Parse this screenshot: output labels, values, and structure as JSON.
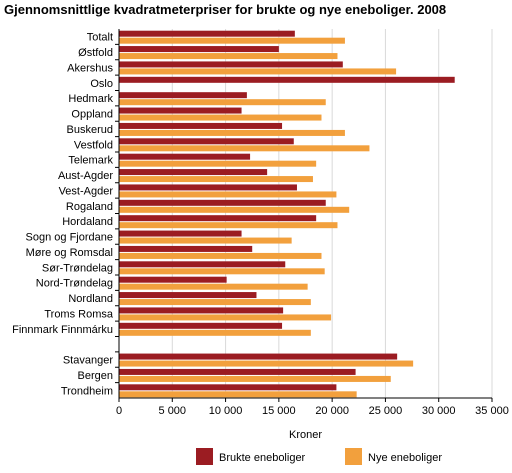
{
  "chart_data": {
    "type": "bar",
    "orientation": "horizontal",
    "title": "Gjennomsnittlige kvadratmeterpriser for brukte og nye eneboliger. 2008",
    "xlabel": "Kroner",
    "ylabel": "",
    "xlim": [
      0,
      35000
    ],
    "xticks": [
      0,
      5000,
      10000,
      15000,
      20000,
      25000,
      30000,
      35000
    ],
    "xtick_labels": [
      "0",
      "5 000",
      "10 000",
      "15 000",
      "20 000",
      "25 000",
      "30 000",
      "35 000"
    ],
    "grid": true,
    "legend_position": "bottom",
    "categories": [
      "Totalt",
      "Østfold",
      "Akershus",
      "Oslo",
      "Hedmark",
      "Oppland",
      "Buskerud",
      "Vestfold",
      "Telemark",
      "Aust-Agder",
      "Vest-Agder",
      "Rogaland",
      "Hordaland",
      "Sogn og Fjordane",
      "Møre og Romsdal",
      "Sør-Trøndelag",
      "Nord-Trøndelag",
      "Nordland",
      "Troms Romsa",
      "Finnmark Finnmárku",
      "",
      "Stavanger",
      "Bergen",
      "Trondheim"
    ],
    "series": [
      {
        "name": "Brukte eneboliger",
        "color": "#9b1c22",
        "values": [
          16500,
          15000,
          21000,
          31500,
          12000,
          11500,
          15300,
          16400,
          12300,
          13900,
          16700,
          19400,
          18500,
          11500,
          12500,
          15600,
          10100,
          12900,
          15400,
          15300,
          null,
          26100,
          22200,
          20400
        ]
      },
      {
        "name": "Nye eneboliger",
        "color": "#f2a03d",
        "values": [
          21200,
          20500,
          26000,
          null,
          19400,
          19000,
          21200,
          23500,
          18500,
          18200,
          20400,
          21600,
          20500,
          16200,
          19000,
          19300,
          17700,
          18000,
          19900,
          18000,
          null,
          27600,
          25500,
          22300
        ]
      }
    ]
  }
}
